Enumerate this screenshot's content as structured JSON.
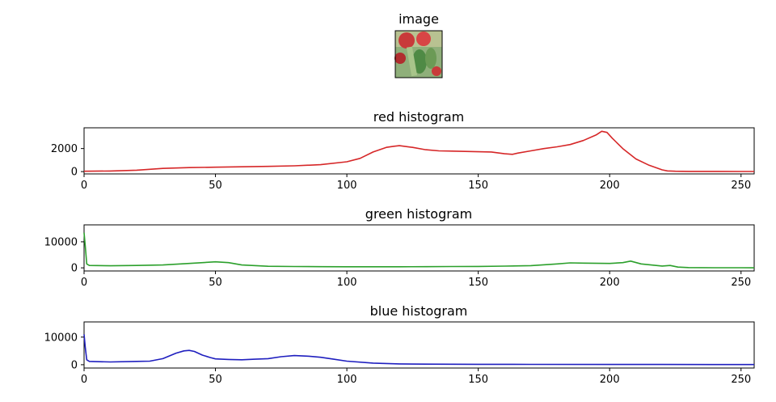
{
  "image_panel": {
    "title": "image",
    "thumbnail": {
      "description_colors": [
        "#c83a3a",
        "#8faf7a",
        "#2f6b3a",
        "#d4cfa0"
      ],
      "icon": "fruit-photo-thumbnail"
    }
  },
  "chart_data": [
    {
      "type": "line",
      "title": "red histogram",
      "xlabel": "",
      "ylabel": "",
      "xlim": [
        0,
        255
      ],
      "ylim": [
        -200,
        3800
      ],
      "xticks": [
        0,
        50,
        100,
        150,
        200,
        250
      ],
      "yticks": [
        0,
        2000
      ],
      "grid": false,
      "color": "#d62728",
      "series": [
        {
          "x": [
            0,
            10,
            20,
            30,
            40,
            50,
            60,
            70,
            80,
            90,
            100,
            105,
            110,
            115,
            118,
            120,
            125,
            130,
            135,
            140,
            145,
            150,
            155,
            160,
            163,
            165,
            170,
            175,
            180,
            185,
            190,
            195,
            197,
            199,
            201,
            205,
            210,
            215,
            220,
            222,
            225,
            230,
            240,
            250,
            255
          ],
          "values": [
            30,
            50,
            120,
            280,
            350,
            380,
            420,
            450,
            500,
            600,
            850,
            1150,
            1700,
            2100,
            2200,
            2250,
            2100,
            1900,
            1800,
            1780,
            1750,
            1720,
            1700,
            1550,
            1500,
            1600,
            1800,
            2000,
            2150,
            2350,
            2700,
            3200,
            3500,
            3400,
            2900,
            2000,
            1100,
            550,
            150,
            60,
            30,
            20,
            15,
            10,
            10
          ]
        }
      ]
    },
    {
      "type": "line",
      "title": "green histogram",
      "xlabel": "",
      "ylabel": "",
      "xlim": [
        0,
        255
      ],
      "ylim": [
        -1200,
        16500
      ],
      "xticks": [
        0,
        50,
        100,
        150,
        200,
        250
      ],
      "yticks": [
        0,
        10000
      ],
      "grid": false,
      "color": "#2ca02c",
      "series": [
        {
          "x": [
            0,
            0.5,
            1,
            2,
            10,
            20,
            30,
            40,
            50,
            55,
            60,
            70,
            80,
            90,
            100,
            110,
            120,
            130,
            140,
            150,
            160,
            170,
            180,
            185,
            190,
            200,
            205,
            208,
            212,
            220,
            223,
            226,
            230,
            240,
            250,
            255
          ],
          "values": [
            13500,
            8000,
            1500,
            900,
            800,
            900,
            1100,
            1700,
            2300,
            2000,
            1100,
            600,
            500,
            450,
            400,
            400,
            420,
            450,
            500,
            550,
            650,
            850,
            1500,
            1900,
            1800,
            1700,
            2000,
            2600,
            1500,
            700,
            900,
            300,
            100,
            50,
            30,
            20
          ]
        }
      ]
    },
    {
      "type": "line",
      "title": "blue histogram",
      "xlabel": "",
      "ylabel": "",
      "xlim": [
        0,
        255
      ],
      "ylim": [
        -1200,
        15500
      ],
      "xticks": [
        0,
        50,
        100,
        150,
        200,
        250
      ],
      "yticks": [
        0,
        10000
      ],
      "grid": false,
      "color": "#1f1fbf",
      "series": [
        {
          "x": [
            0,
            0.5,
            1,
            2,
            10,
            20,
            25,
            30,
            35,
            38,
            40,
            42,
            45,
            48,
            50,
            55,
            60,
            65,
            70,
            75,
            80,
            85,
            90,
            95,
            100,
            110,
            120,
            130,
            150,
            170,
            200,
            220,
            240,
            255
          ],
          "values": [
            11000,
            6000,
            1800,
            1200,
            1000,
            1200,
            1300,
            2200,
            4200,
            5000,
            5200,
            4800,
            3500,
            2600,
            2100,
            1900,
            1800,
            2000,
            2200,
            2900,
            3300,
            3100,
            2700,
            2000,
            1300,
            600,
            300,
            200,
            150,
            120,
            100,
            80,
            60,
            50
          ]
        }
      ]
    }
  ]
}
